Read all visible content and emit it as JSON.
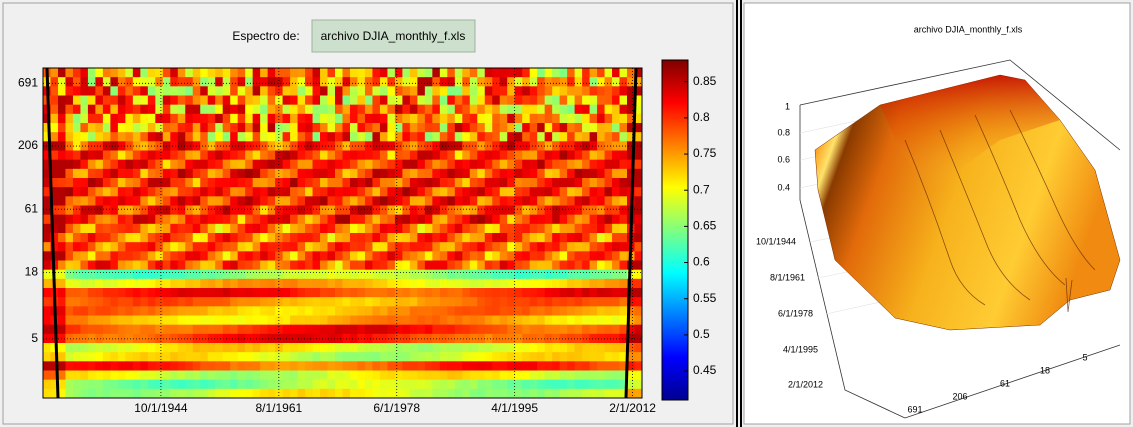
{
  "header": {
    "label": "Espectro de:",
    "file_button": "archivo DJIA_monthly_f.xls"
  },
  "heatmap": {
    "yticks": [
      5,
      18,
      61,
      206,
      691
    ],
    "ylim": [
      1.6,
      928
    ],
    "log_y": true,
    "xticks": [
      "10/1/1944",
      "8/1/1961",
      "6/1/1978",
      "4/1/1995",
      "2/1/2012"
    ],
    "colorbar_ticks": [
      0.45,
      0.5,
      0.55,
      0.6,
      0.65,
      0.7,
      0.75,
      0.8,
      0.85
    ],
    "colorbar_lim": [
      0.41,
      0.88
    ]
  },
  "surface": {
    "title": "archivo DJIA_monthly_f.xls",
    "zticks": [
      "1",
      "0.8",
      "0.6",
      "0.4"
    ],
    "date_ticks": [
      "10/1/1944",
      "8/1/1961",
      "6/1/1978",
      "4/1/1995",
      "2/1/2012"
    ],
    "scale_ticks": [
      "691",
      "206",
      "61",
      "18",
      "5"
    ]
  }
}
